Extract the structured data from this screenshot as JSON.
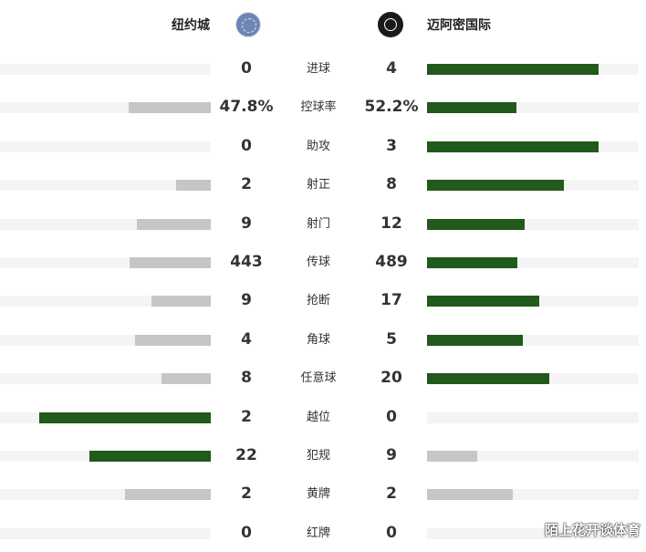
{
  "teams": {
    "home": {
      "name": "纽约城",
      "logo_icon": "nycfc-crest-icon"
    },
    "away": {
      "name": "迈阿密国际",
      "logo_icon": "inter-miami-crest-icon"
    }
  },
  "colors": {
    "leader": "#215a1a",
    "trailer": "#c6c6c6",
    "track": "#f4f4f4"
  },
  "stats": [
    {
      "label": "进球",
      "home": "0",
      "away": "4",
      "home_frac": 0.0,
      "away_frac": 1.0,
      "leader": "away"
    },
    {
      "label": "控球率",
      "home": "47.8%",
      "away": "52.2%",
      "home_frac": 0.478,
      "away_frac": 0.522,
      "leader": "away"
    },
    {
      "label": "助攻",
      "home": "0",
      "away": "3",
      "home_frac": 0.0,
      "away_frac": 1.0,
      "leader": "away"
    },
    {
      "label": "射正",
      "home": "2",
      "away": "8",
      "home_frac": 0.2,
      "away_frac": 0.8,
      "leader": "away"
    },
    {
      "label": "射门",
      "home": "9",
      "away": "12",
      "home_frac": 0.429,
      "away_frac": 0.571,
      "leader": "away"
    },
    {
      "label": "传球",
      "home": "443",
      "away": "489",
      "home_frac": 0.475,
      "away_frac": 0.525,
      "leader": "away"
    },
    {
      "label": "抢断",
      "home": "9",
      "away": "17",
      "home_frac": 0.346,
      "away_frac": 0.654,
      "leader": "away"
    },
    {
      "label": "角球",
      "home": "4",
      "away": "5",
      "home_frac": 0.444,
      "away_frac": 0.556,
      "leader": "away"
    },
    {
      "label": "任意球",
      "home": "8",
      "away": "20",
      "home_frac": 0.286,
      "away_frac": 0.714,
      "leader": "away"
    },
    {
      "label": "越位",
      "home": "2",
      "away": "0",
      "home_frac": 1.0,
      "away_frac": 0.0,
      "leader": "home"
    },
    {
      "label": "犯规",
      "home": "22",
      "away": "9",
      "home_frac": 0.71,
      "away_frac": 0.29,
      "leader": "home"
    },
    {
      "label": "黄牌",
      "home": "2",
      "away": "2",
      "home_frac": 0.5,
      "away_frac": 0.5,
      "leader": "none"
    },
    {
      "label": "红牌",
      "home": "0",
      "away": "0",
      "home_frac": 0.0,
      "away_frac": 0.0,
      "leader": "none"
    }
  ],
  "watermark": "陌上花开谈体育"
}
